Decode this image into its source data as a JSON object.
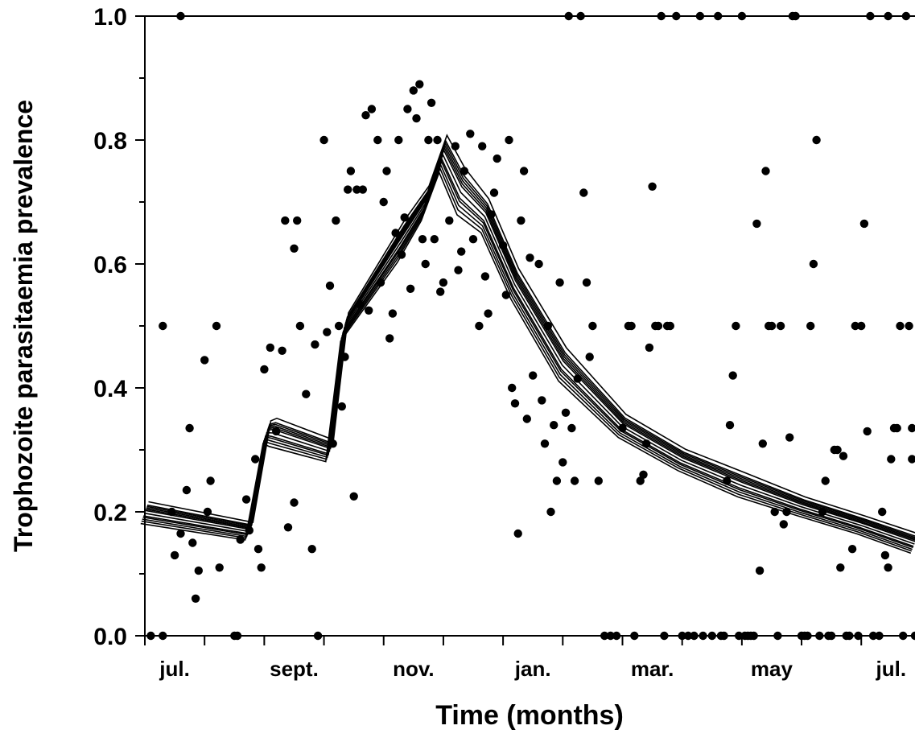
{
  "chart_data": {
    "type": "scatter",
    "xlabel": "Time (months)",
    "ylabel": "Trophozoite parasitaemia prevalence",
    "x_unit": "months",
    "xlim": [
      0,
      12.9
    ],
    "ylim": [
      0,
      1
    ],
    "y_ticks": [
      0.0,
      0.2,
      0.4,
      0.6,
      0.8,
      1.0
    ],
    "y_tick_labels": [
      "0.0",
      "0.2",
      "0.4",
      "0.6",
      "0.8",
      "1.0"
    ],
    "x_month_ticks": [
      0,
      1,
      2,
      3,
      4,
      5,
      6,
      7,
      8,
      9,
      10,
      11,
      12
    ],
    "x_tick_labels": [
      {
        "month": 0.5,
        "label": "jul."
      },
      {
        "month": 2.5,
        "label": "sept."
      },
      {
        "month": 4.5,
        "label": "nov."
      },
      {
        "month": 6.5,
        "label": "jan."
      },
      {
        "month": 8.5,
        "label": "mar."
      },
      {
        "month": 10.5,
        "label": "may"
      },
      {
        "month": 12.5,
        "label": "jul."
      }
    ],
    "grid": false,
    "legend": "none",
    "colors": {
      "points": "#000000",
      "lines": "#000000",
      "axis": "#000000"
    },
    "model_curve_knots": {
      "x": [
        0,
        1.75,
        2.05,
        2.15,
        3.1,
        3.35,
        4.3,
        4.7,
        5.0,
        5.3,
        5.7,
        6.2,
        7.0,
        8.0,
        9.0,
        10.0,
        11.0,
        12.0,
        12.9
      ],
      "y": [
        0.2,
        0.17,
        0.33,
        0.33,
        0.3,
        0.5,
        0.64,
        0.7,
        0.78,
        0.72,
        0.68,
        0.57,
        0.44,
        0.34,
        0.285,
        0.245,
        0.21,
        0.18,
        0.15
      ]
    },
    "model_curve_offsets": [
      -0.035,
      -0.022,
      -0.012,
      -0.004,
      0.004,
      0.012,
      0.02,
      0.03,
      -0.028,
      0.016,
      0.008,
      -0.016
    ],
    "points": [
      {
        "x": 0.1,
        "y": 0.0
      },
      {
        "x": 0.3,
        "y": 0.0
      },
      {
        "x": 0.6,
        "y": 1.0
      },
      {
        "x": 0.3,
        "y": 0.5
      },
      {
        "x": 0.45,
        "y": 0.2
      },
      {
        "x": 0.5,
        "y": 0.13
      },
      {
        "x": 0.6,
        "y": 0.165
      },
      {
        "x": 0.7,
        "y": 0.235
      },
      {
        "x": 0.8,
        "y": 0.15
      },
      {
        "x": 0.85,
        "y": 0.06
      },
      {
        "x": 0.9,
        "y": 0.105
      },
      {
        "x": 1.0,
        "y": 0.445
      },
      {
        "x": 1.1,
        "y": 0.25
      },
      {
        "x": 1.2,
        "y": 0.5
      },
      {
        "x": 1.25,
        "y": 0.11
      },
      {
        "x": 1.05,
        "y": 0.2
      },
      {
        "x": 0.75,
        "y": 0.335
      },
      {
        "x": 1.5,
        "y": 0.0
      },
      {
        "x": 1.55,
        "y": 0.0
      },
      {
        "x": 1.6,
        "y": 0.155
      },
      {
        "x": 1.7,
        "y": 0.22
      },
      {
        "x": 1.75,
        "y": 0.17
      },
      {
        "x": 1.85,
        "y": 0.285
      },
      {
        "x": 1.9,
        "y": 0.14
      },
      {
        "x": 1.95,
        "y": 0.11
      },
      {
        "x": 2.0,
        "y": 0.43
      },
      {
        "x": 2.1,
        "y": 0.465
      },
      {
        "x": 2.2,
        "y": 0.33
      },
      {
        "x": 2.3,
        "y": 0.46
      },
      {
        "x": 2.35,
        "y": 0.67
      },
      {
        "x": 2.4,
        "y": 0.175
      },
      {
        "x": 2.5,
        "y": 0.625
      },
      {
        "x": 2.55,
        "y": 0.67
      },
      {
        "x": 2.5,
        "y": 0.215
      },
      {
        "x": 2.6,
        "y": 0.5
      },
      {
        "x": 2.7,
        "y": 0.39
      },
      {
        "x": 2.8,
        "y": 0.14
      },
      {
        "x": 2.85,
        "y": 0.47
      },
      {
        "x": 2.9,
        "y": 0.0
      },
      {
        "x": 3.0,
        "y": 0.8
      },
      {
        "x": 3.05,
        "y": 0.49
      },
      {
        "x": 3.1,
        "y": 0.565
      },
      {
        "x": 3.15,
        "y": 0.31
      },
      {
        "x": 3.2,
        "y": 0.67
      },
      {
        "x": 3.25,
        "y": 0.5
      },
      {
        "x": 3.3,
        "y": 0.37
      },
      {
        "x": 3.35,
        "y": 0.45
      },
      {
        "x": 3.4,
        "y": 0.72
      },
      {
        "x": 3.45,
        "y": 0.75
      },
      {
        "x": 3.5,
        "y": 0.225
      },
      {
        "x": 3.55,
        "y": 0.72
      },
      {
        "x": 3.6,
        "y": 0.535
      },
      {
        "x": 3.65,
        "y": 0.72
      },
      {
        "x": 3.7,
        "y": 0.84
      },
      {
        "x": 3.75,
        "y": 0.525
      },
      {
        "x": 3.8,
        "y": 0.85
      },
      {
        "x": 3.9,
        "y": 0.8
      },
      {
        "x": 3.95,
        "y": 0.57
      },
      {
        "x": 4.0,
        "y": 0.7
      },
      {
        "x": 4.05,
        "y": 0.75
      },
      {
        "x": 4.1,
        "y": 0.48
      },
      {
        "x": 4.15,
        "y": 0.52
      },
      {
        "x": 4.2,
        "y": 0.65
      },
      {
        "x": 4.25,
        "y": 0.8
      },
      {
        "x": 4.3,
        "y": 0.615
      },
      {
        "x": 4.35,
        "y": 0.675
      },
      {
        "x": 4.4,
        "y": 0.85
      },
      {
        "x": 4.45,
        "y": 0.56
      },
      {
        "x": 4.5,
        "y": 0.88
      },
      {
        "x": 4.55,
        "y": 0.835
      },
      {
        "x": 4.6,
        "y": 0.89
      },
      {
        "x": 4.65,
        "y": 0.64
      },
      {
        "x": 4.7,
        "y": 0.6
      },
      {
        "x": 4.75,
        "y": 0.8
      },
      {
        "x": 4.8,
        "y": 0.86
      },
      {
        "x": 4.85,
        "y": 0.64
      },
      {
        "x": 4.9,
        "y": 0.8
      },
      {
        "x": 4.95,
        "y": 0.555
      },
      {
        "x": 5.0,
        "y": 0.57
      },
      {
        "x": 5.1,
        "y": 0.67
      },
      {
        "x": 5.2,
        "y": 0.79
      },
      {
        "x": 5.25,
        "y": 0.59
      },
      {
        "x": 5.3,
        "y": 0.62
      },
      {
        "x": 5.35,
        "y": 0.75
      },
      {
        "x": 5.45,
        "y": 0.81
      },
      {
        "x": 5.5,
        "y": 0.64
      },
      {
        "x": 5.6,
        "y": 0.5
      },
      {
        "x": 5.65,
        "y": 0.79
      },
      {
        "x": 5.7,
        "y": 0.58
      },
      {
        "x": 5.75,
        "y": 0.52
      },
      {
        "x": 5.8,
        "y": 0.68
      },
      {
        "x": 5.85,
        "y": 0.715
      },
      {
        "x": 5.9,
        "y": 0.77
      },
      {
        "x": 6.0,
        "y": 0.63
      },
      {
        "x": 6.05,
        "y": 0.55
      },
      {
        "x": 6.1,
        "y": 0.8
      },
      {
        "x": 6.15,
        "y": 0.4
      },
      {
        "x": 6.2,
        "y": 0.375
      },
      {
        "x": 6.25,
        "y": 0.165
      },
      {
        "x": 6.3,
        "y": 0.67
      },
      {
        "x": 6.35,
        "y": 0.75
      },
      {
        "x": 6.4,
        "y": 0.35
      },
      {
        "x": 6.45,
        "y": 0.61
      },
      {
        "x": 6.5,
        "y": 0.42
      },
      {
        "x": 6.6,
        "y": 0.6
      },
      {
        "x": 6.65,
        "y": 0.38
      },
      {
        "x": 6.7,
        "y": 0.31
      },
      {
        "x": 6.75,
        "y": 0.5
      },
      {
        "x": 6.8,
        "y": 0.2
      },
      {
        "x": 6.85,
        "y": 0.34
      },
      {
        "x": 6.9,
        "y": 0.25
      },
      {
        "x": 6.95,
        "y": 0.57
      },
      {
        "x": 7.0,
        "y": 0.28
      },
      {
        "x": 7.05,
        "y": 0.36
      },
      {
        "x": 7.1,
        "y": 1.0
      },
      {
        "x": 7.15,
        "y": 0.335
      },
      {
        "x": 7.2,
        "y": 0.25
      },
      {
        "x": 7.25,
        "y": 0.415
      },
      {
        "x": 7.3,
        "y": 1.0
      },
      {
        "x": 7.35,
        "y": 0.715
      },
      {
        "x": 7.4,
        "y": 0.57
      },
      {
        "x": 7.45,
        "y": 0.45
      },
      {
        "x": 7.5,
        "y": 0.5
      },
      {
        "x": 7.6,
        "y": 0.25
      },
      {
        "x": 7.7,
        "y": 0.0
      },
      {
        "x": 7.8,
        "y": 0.0
      },
      {
        "x": 7.9,
        "y": 0.0
      },
      {
        "x": 8.0,
        "y": 0.335
      },
      {
        "x": 8.1,
        "y": 0.5
      },
      {
        "x": 8.15,
        "y": 0.5
      },
      {
        "x": 8.2,
        "y": 0.0
      },
      {
        "x": 8.3,
        "y": 0.25
      },
      {
        "x": 8.35,
        "y": 0.26
      },
      {
        "x": 8.4,
        "y": 0.31
      },
      {
        "x": 8.45,
        "y": 0.465
      },
      {
        "x": 8.5,
        "y": 0.725
      },
      {
        "x": 8.55,
        "y": 0.5
      },
      {
        "x": 8.6,
        "y": 0.5
      },
      {
        "x": 8.65,
        "y": 1.0
      },
      {
        "x": 8.7,
        "y": 0.0
      },
      {
        "x": 8.75,
        "y": 0.5
      },
      {
        "x": 8.8,
        "y": 0.5
      },
      {
        "x": 8.9,
        "y": 1.0
      },
      {
        "x": 9.0,
        "y": 0.0
      },
      {
        "x": 9.1,
        "y": 0.0
      },
      {
        "x": 9.2,
        "y": 0.0
      },
      {
        "x": 9.3,
        "y": 1.0
      },
      {
        "x": 9.35,
        "y": 0.0
      },
      {
        "x": 9.5,
        "y": 0.0
      },
      {
        "x": 9.6,
        "y": 1.0
      },
      {
        "x": 9.65,
        "y": 0.0
      },
      {
        "x": 9.7,
        "y": 0.0
      },
      {
        "x": 9.75,
        "y": 0.25
      },
      {
        "x": 9.8,
        "y": 0.34
      },
      {
        "x": 9.85,
        "y": 0.42
      },
      {
        "x": 9.9,
        "y": 0.5
      },
      {
        "x": 9.95,
        "y": 0.0
      },
      {
        "x": 10.0,
        "y": 1.0
      },
      {
        "x": 10.05,
        "y": 0.0
      },
      {
        "x": 10.1,
        "y": 0.0
      },
      {
        "x": 10.15,
        "y": 0.0
      },
      {
        "x": 10.2,
        "y": 0.0
      },
      {
        "x": 10.25,
        "y": 0.665
      },
      {
        "x": 10.3,
        "y": 0.105
      },
      {
        "x": 10.35,
        "y": 0.31
      },
      {
        "x": 10.4,
        "y": 0.75
      },
      {
        "x": 10.45,
        "y": 0.5
      },
      {
        "x": 10.5,
        "y": 0.5
      },
      {
        "x": 10.55,
        "y": 0.2
      },
      {
        "x": 10.6,
        "y": 0.0
      },
      {
        "x": 10.65,
        "y": 0.5
      },
      {
        "x": 10.7,
        "y": 0.18
      },
      {
        "x": 10.75,
        "y": 0.2
      },
      {
        "x": 10.8,
        "y": 0.32
      },
      {
        "x": 10.85,
        "y": 1.0
      },
      {
        "x": 10.9,
        "y": 1.0
      },
      {
        "x": 11.0,
        "y": 0.0
      },
      {
        "x": 11.05,
        "y": 0.0
      },
      {
        "x": 11.1,
        "y": 0.0
      },
      {
        "x": 11.15,
        "y": 0.5
      },
      {
        "x": 11.2,
        "y": 0.6
      },
      {
        "x": 11.25,
        "y": 0.8
      },
      {
        "x": 11.3,
        "y": 0.0
      },
      {
        "x": 11.35,
        "y": 0.2
      },
      {
        "x": 11.4,
        "y": 0.25
      },
      {
        "x": 11.45,
        "y": 0.0
      },
      {
        "x": 11.5,
        "y": 0.0
      },
      {
        "x": 11.55,
        "y": 0.3
      },
      {
        "x": 11.6,
        "y": 0.3
      },
      {
        "x": 11.65,
        "y": 0.11
      },
      {
        "x": 11.7,
        "y": 0.29
      },
      {
        "x": 11.75,
        "y": 0.0
      },
      {
        "x": 11.8,
        "y": 0.0
      },
      {
        "x": 11.85,
        "y": 0.14
      },
      {
        "x": 11.9,
        "y": 0.5
      },
      {
        "x": 11.95,
        "y": 0.0
      },
      {
        "x": 12.0,
        "y": 0.5
      },
      {
        "x": 12.05,
        "y": 0.665
      },
      {
        "x": 12.1,
        "y": 0.33
      },
      {
        "x": 12.15,
        "y": 1.0
      },
      {
        "x": 12.2,
        "y": 0.0
      },
      {
        "x": 12.3,
        "y": 0.0
      },
      {
        "x": 12.35,
        "y": 0.2
      },
      {
        "x": 12.4,
        "y": 0.13
      },
      {
        "x": 12.45,
        "y": 0.11
      },
      {
        "x": 12.5,
        "y": 0.285
      },
      {
        "x": 12.55,
        "y": 0.335
      },
      {
        "x": 12.6,
        "y": 0.335
      },
      {
        "x": 12.65,
        "y": 0.5
      },
      {
        "x": 12.7,
        "y": 0.0
      },
      {
        "x": 12.75,
        "y": 1.0
      },
      {
        "x": 12.8,
        "y": 0.5
      },
      {
        "x": 12.85,
        "y": 0.335
      },
      {
        "x": 12.45,
        "y": 1.0
      },
      {
        "x": 12.9,
        "y": 0.0
      },
      {
        "x": 12.85,
        "y": 0.285
      }
    ]
  }
}
